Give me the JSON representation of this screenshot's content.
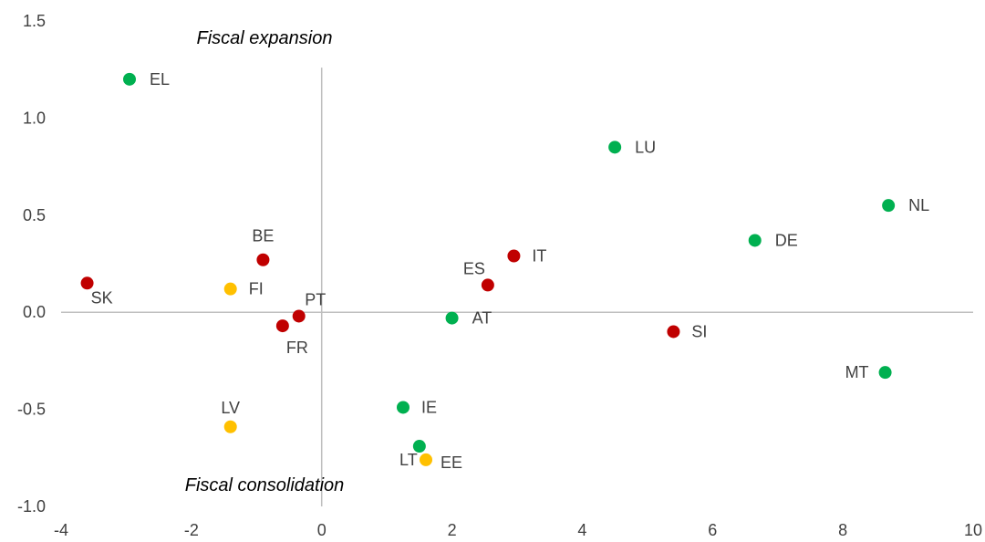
{
  "chart_data": {
    "type": "scatter",
    "xlim": [
      -4,
      10
    ],
    "ylim": [
      -1.0,
      1.5
    ],
    "x_ticks": [
      "-4",
      "-2",
      "0",
      "2",
      "4",
      "6",
      "8",
      "10"
    ],
    "y_ticks": [
      "-1.0",
      "-0.5",
      "0.0",
      "0.5",
      "1.0",
      "1.5"
    ],
    "grid": false,
    "annotations": {
      "top": "Fiscal expansion",
      "bottom": "Fiscal consolidation"
    },
    "colors": {
      "green": "#00b050",
      "red": "#c00000",
      "yellow": "#ffc000",
      "axis": "#bfbfbf"
    },
    "points": [
      {
        "label": "EL",
        "x": -2.95,
        "y": 1.2,
        "color": "green"
      },
      {
        "label": "LU",
        "x": 4.5,
        "y": 0.85,
        "color": "green"
      },
      {
        "label": "NL",
        "x": 8.7,
        "y": 0.55,
        "color": "green"
      },
      {
        "label": "DE",
        "x": 6.65,
        "y": 0.37,
        "color": "green"
      },
      {
        "label": "BE",
        "x": -0.9,
        "y": 0.27,
        "color": "red"
      },
      {
        "label": "IT",
        "x": 2.95,
        "y": 0.29,
        "color": "red"
      },
      {
        "label": "SK",
        "x": -3.6,
        "y": 0.15,
        "color": "red"
      },
      {
        "label": "FI",
        "x": -1.4,
        "y": 0.12,
        "color": "yellow"
      },
      {
        "label": "ES",
        "x": 2.55,
        "y": 0.14,
        "color": "red"
      },
      {
        "label": "PT",
        "x": -0.35,
        "y": -0.02,
        "color": "red"
      },
      {
        "label": "FR",
        "x": -0.6,
        "y": -0.07,
        "color": "red"
      },
      {
        "label": "AT",
        "x": 2.0,
        "y": -0.03,
        "color": "green"
      },
      {
        "label": "SI",
        "x": 5.4,
        "y": -0.1,
        "color": "red"
      },
      {
        "label": "MT",
        "x": 8.65,
        "y": -0.31,
        "color": "green"
      },
      {
        "label": "IE",
        "x": 1.25,
        "y": -0.49,
        "color": "green"
      },
      {
        "label": "LV",
        "x": -1.4,
        "y": -0.59,
        "color": "yellow"
      },
      {
        "label": "LT",
        "x": 1.5,
        "y": -0.69,
        "color": "green"
      },
      {
        "label": "EE",
        "x": 1.6,
        "y": -0.76,
        "color": "yellow"
      }
    ]
  }
}
